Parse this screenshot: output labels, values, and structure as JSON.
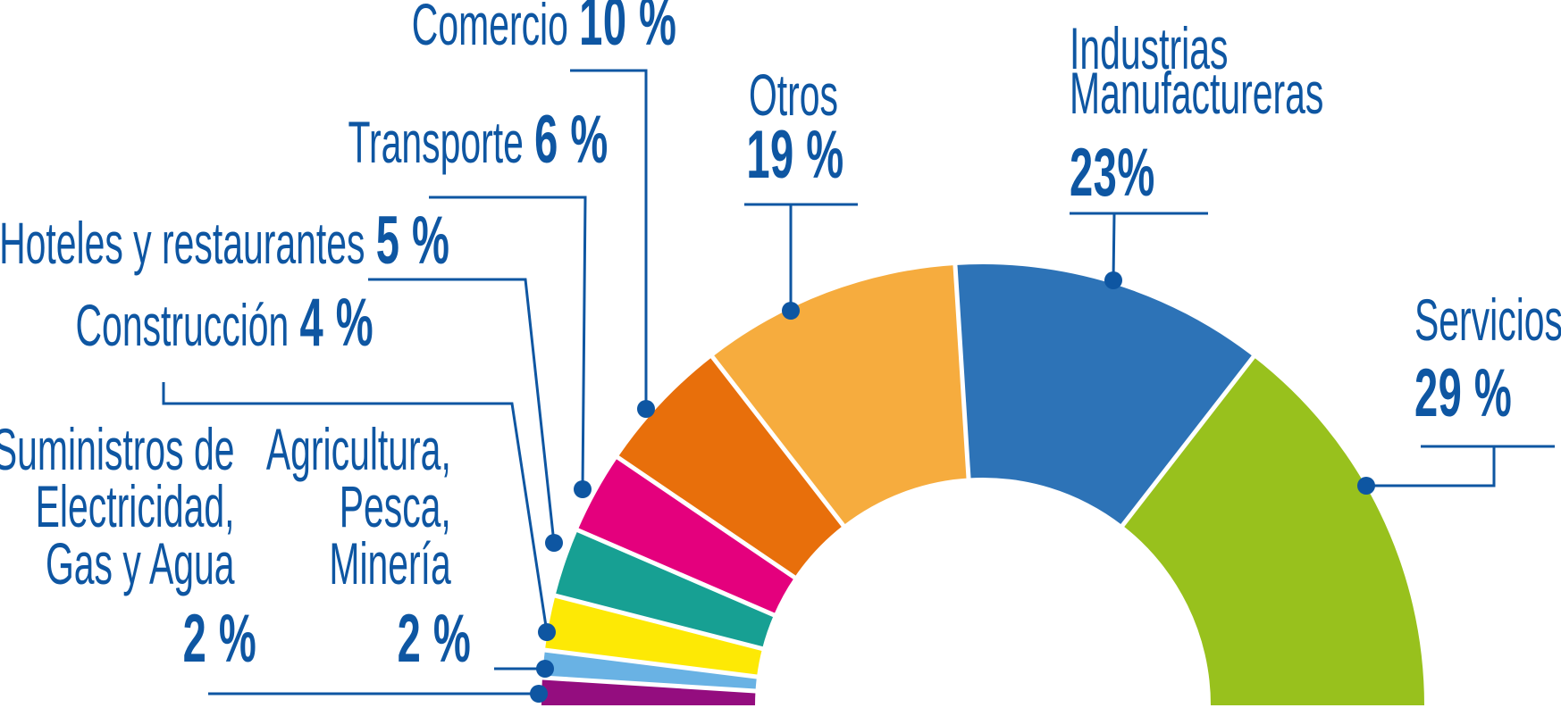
{
  "chart_data": {
    "type": "pie",
    "subtype": "semi-donut",
    "unit": "%",
    "total_angle_deg": 180,
    "start_side": "right",
    "grid": false,
    "legend_position": "callout-labels-around-arc",
    "accent_color": "#0e56a2",
    "background_color": "#ffffff",
    "segments": [
      {
        "key": "servicios",
        "label": "Servicios",
        "label_lines": [
          "Servicios"
        ],
        "value": 29,
        "value_text": "29 %",
        "color": "#98c11d"
      },
      {
        "key": "industrias-manufactureras",
        "label": "Industrias Manufactureras",
        "label_lines": [
          "Industrias",
          "Manufactureras"
        ],
        "value": 23,
        "value_text": "23%",
        "color": "#2d73b7"
      },
      {
        "key": "otros",
        "label": "Otros",
        "label_lines": [
          "Otros"
        ],
        "value": 19,
        "value_text": "19 %",
        "color": "#f6ac3e"
      },
      {
        "key": "comercio",
        "label": "Comercio",
        "label_lines": [
          "Comercio"
        ],
        "value": 10,
        "value_text": "10 %",
        "color": "#e86f0b"
      },
      {
        "key": "transporte",
        "label": "Transporte",
        "label_lines": [
          "Transporte"
        ],
        "value": 6,
        "value_text": "6 %",
        "color": "#e4007d"
      },
      {
        "key": "hoteles-y-restaurantes",
        "label": "Hoteles y restaurantes",
        "label_lines": [
          "Hoteles y restaurantes"
        ],
        "value": 5,
        "value_text": "5 %",
        "color": "#17a093"
      },
      {
        "key": "construccion",
        "label": "Construcción",
        "label_lines": [
          "Construcción"
        ],
        "value": 4,
        "value_text": "4 %",
        "color": "#fde905"
      },
      {
        "key": "agricultura-pesca-mineria",
        "label": "Agricultura, Pesca, Minería",
        "label_lines": [
          "Agricultura,",
          "Pesca,",
          "Minería"
        ],
        "value": 2,
        "value_text": "2 %",
        "color": "#69b2e4"
      },
      {
        "key": "suministros-electricidad-gas-agua",
        "label": "Suministros de Electricidad, Gas y Agua",
        "label_lines": [
          "Suministros de",
          "Electricidad,",
          "Gas y Agua"
        ],
        "value": 2,
        "value_text": "2 %",
        "color": "#940d7f"
      }
    ]
  }
}
